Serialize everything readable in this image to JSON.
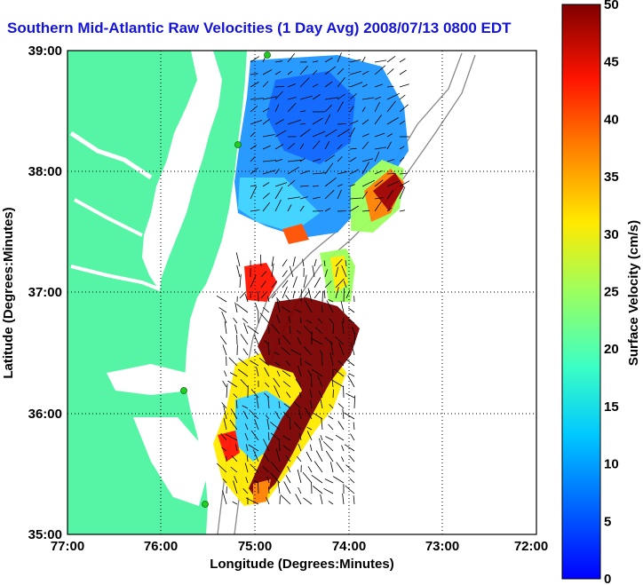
{
  "title": "Southern Mid-Atlantic Raw Velocities (1 Day Avg) 2008/07/13 0800 EDT",
  "x_axis": {
    "label": "Longitude (Degrees:Minutes)",
    "ticks": [
      "77:00",
      "76:00",
      "75:00",
      "74:00",
      "73:00",
      "72:00"
    ]
  },
  "y_axis": {
    "label": "Latitude (Degrees:Minutes)",
    "ticks": [
      "39:00",
      "38:00",
      "37:00",
      "36:00",
      "35:00"
    ]
  },
  "colorbar": {
    "label": "Surface Velocity (cm/s)",
    "ticks": [
      "50",
      "45",
      "40",
      "35",
      "30",
      "25",
      "20",
      "15",
      "10",
      "5",
      "0"
    ],
    "min": 0,
    "max": 50,
    "colormap": "jet"
  },
  "colors": {
    "title": "#1414d8",
    "land": "#55f5a5",
    "bathymetry": "#888888",
    "stations": "#22cc22"
  },
  "map": {
    "lon_range": [
      -77,
      -72
    ],
    "lat_range": [
      35,
      39
    ],
    "grid": "dotted",
    "stations": 4
  }
}
